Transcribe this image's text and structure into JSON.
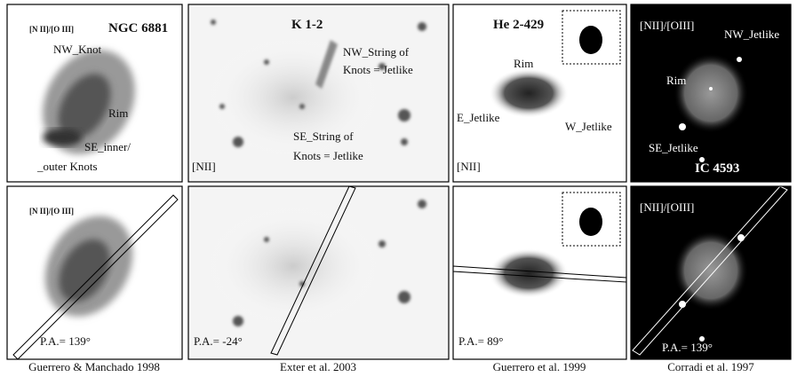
{
  "panels": [
    {
      "top": [
        "[N II]/[O III]",
        "NGC 6881",
        "NW_Knot",
        "Rim",
        "SE_inner/",
        "_outer Knots"
      ],
      "bottom": [
        "[N II]/[O III]",
        "P.A.= 139°"
      ],
      "caption": "Guerrero & Manchado 1998"
    },
    {
      "top": [
        "K 1-2",
        "NW_String of",
        "Knots = Jetlike",
        "SE_String of",
        "Knots = Jetlike",
        "[NII]"
      ],
      "bottom": [
        "P.A.= -24°"
      ],
      "caption": "Exter et al. 2003"
    },
    {
      "top": [
        "He 2-429",
        "Rim",
        "E_Jetlike",
        "W_Jetlike",
        "[NII]"
      ],
      "bottom": [
        "P.A.= 89°"
      ],
      "caption": "Guerrero et al. 1999"
    },
    {
      "top": [
        "[NII]/[OIII]",
        "NW_Jetlike",
        "Rim",
        "SE_Jetlike",
        "IC 4593"
      ],
      "bottom": [
        "[NII]/[OIII]",
        "P.A.= 139°"
      ],
      "caption": "Corradi et al. 1997"
    }
  ]
}
